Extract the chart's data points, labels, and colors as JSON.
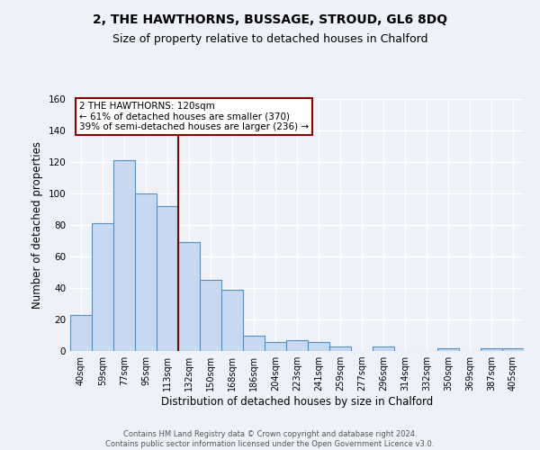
{
  "title": "2, THE HAWTHORNS, BUSSAGE, STROUD, GL6 8DQ",
  "subtitle": "Size of property relative to detached houses in Chalford",
  "xlabel": "Distribution of detached houses by size in Chalford",
  "ylabel": "Number of detached properties",
  "bar_labels": [
    "40sqm",
    "59sqm",
    "77sqm",
    "95sqm",
    "113sqm",
    "132sqm",
    "150sqm",
    "168sqm",
    "186sqm",
    "204sqm",
    "223sqm",
    "241sqm",
    "259sqm",
    "277sqm",
    "296sqm",
    "314sqm",
    "332sqm",
    "350sqm",
    "369sqm",
    "387sqm",
    "405sqm"
  ],
  "bar_values": [
    23,
    81,
    121,
    100,
    92,
    69,
    45,
    39,
    10,
    6,
    7,
    6,
    3,
    0,
    3,
    0,
    0,
    2,
    0,
    2,
    2
  ],
  "bar_color": "#c6d9f0",
  "bar_edge_color": "#5b8db8",
  "ylim": [
    0,
    160
  ],
  "yticks": [
    0,
    20,
    40,
    60,
    80,
    100,
    120,
    140,
    160
  ],
  "vline_x": 4.5,
  "vline_color": "#8b0000",
  "annotation_title": "2 THE HAWTHORNS: 120sqm",
  "annotation_line1": "← 61% of detached houses are smaller (370)",
  "annotation_line2": "39% of semi-detached houses are larger (236) →",
  "footer_line1": "Contains HM Land Registry data © Crown copyright and database right 2024.",
  "footer_line2": "Contains public sector information licensed under the Open Government Licence v3.0.",
  "background_color": "#eef2f8",
  "grid_color": "#ffffff",
  "title_fontsize": 10,
  "subtitle_fontsize": 9
}
